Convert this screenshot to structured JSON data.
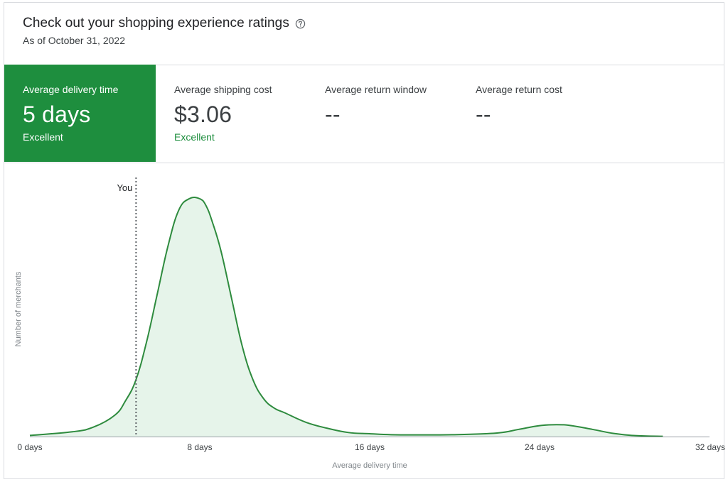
{
  "header": {
    "title": "Check out your shopping experience ratings",
    "subtitle": "As of October 31, 2022",
    "help_icon": "help-circle-icon"
  },
  "metrics": [
    {
      "label": "Average delivery time",
      "value": "5 days",
      "rating": "Excellent",
      "active": true
    },
    {
      "label": "Average shipping cost",
      "value": "$3.06",
      "rating": "Excellent",
      "active": false
    },
    {
      "label": "Average return window",
      "value": "--",
      "rating": "",
      "active": false
    },
    {
      "label": "Average return cost",
      "value": "--",
      "rating": "",
      "active": false
    }
  ],
  "colors": {
    "accent": "#1e8e3e",
    "line": "#2e8b3e",
    "fill": "#e6f4ea"
  },
  "chart_data": {
    "type": "area",
    "title": "",
    "xlabel": "Average delivery time",
    "ylabel": "Number of merchants",
    "xlim": [
      0,
      32
    ],
    "ylim": [
      0,
      100
    ],
    "x_ticks": [
      {
        "value": 0,
        "label": "0 days"
      },
      {
        "value": 8,
        "label": "8 days"
      },
      {
        "value": 16,
        "label": "16 days"
      },
      {
        "value": 24,
        "label": "24 days"
      },
      {
        "value": 32,
        "label": "32 days"
      }
    ],
    "series": [
      {
        "x": [
          0,
          2,
          3,
          4,
          4.5,
          5,
          5.5,
          6,
          6.5,
          7,
          7.5,
          8,
          8.3,
          8.6,
          9,
          9.5,
          10,
          10.5,
          11,
          11.5,
          12,
          13,
          14,
          15,
          16,
          17,
          18,
          20,
          22,
          23,
          24,
          24.8,
          25.5,
          26.5,
          27.5,
          28.5,
          29.8
        ],
        "y": [
          0.5,
          2,
          4,
          9,
          15,
          24,
          40,
          60,
          80,
          95,
          100,
          100,
          97,
          90,
          78,
          58,
          38,
          24,
          16,
          12,
          10,
          6,
          3.5,
          1.7,
          1.2,
          0.8,
          0.7,
          0.8,
          1.5,
          3,
          4.6,
          5,
          4.6,
          3,
          1.3,
          0.4,
          0.1
        ]
      }
    ],
    "marker": {
      "label": "You",
      "x": 5
    },
    "grid": false,
    "legend": "none"
  }
}
